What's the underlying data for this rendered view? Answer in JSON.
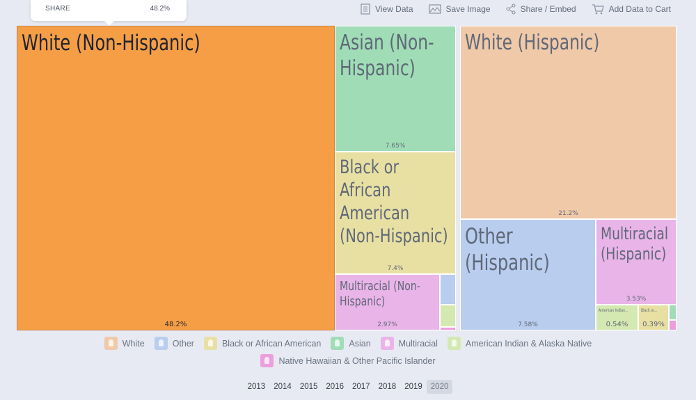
{
  "tooltip": {
    "key": "SHARE",
    "value": "48.2%"
  },
  "toolbar": {
    "items": [
      {
        "label": "View Data",
        "icon": "document-icon"
      },
      {
        "label": "Save Image",
        "icon": "image-icon"
      },
      {
        "label": "Share / Embed",
        "icon": "share-icon"
      },
      {
        "label": "Add Data to Cart",
        "icon": "cart-icon"
      }
    ]
  },
  "chart_data": {
    "type": "treemap",
    "unit": "share (%)",
    "highlighted": "White (Non-Hispanic)",
    "groups": [
      {
        "name": "White",
        "color": "#f0c9a9"
      },
      {
        "name": "Other",
        "color": "#b9cdee"
      },
      {
        "name": "Black or African American",
        "color": "#e8e0a3"
      },
      {
        "name": "Asian",
        "color": "#a0ddb6"
      },
      {
        "name": "Multiracial",
        "color": "#e9b4e8"
      },
      {
        "name": "American Indian & Alaska Native",
        "color": "#d4e9b1"
      },
      {
        "name": "Native Hawaiian & Other Pacific Islander",
        "color": "#ec9fdc"
      }
    ],
    "nodes": [
      {
        "label": "White (Non-Hispanic)",
        "value": 48.2,
        "pct": "48.2%",
        "group": "White"
      },
      {
        "label": "Asian (Non-Hispanic)",
        "value": 7.65,
        "pct": "7.65%",
        "group": "Asian"
      },
      {
        "label": "Black or African American (Non-Hispanic)",
        "value": 7.4,
        "pct": "7.4%",
        "group": "Black or African American"
      },
      {
        "label": "Multiracial (Non-Hispanic)",
        "value": 2.97,
        "pct": "2.97%",
        "group": "Multiracial"
      },
      {
        "label": "",
        "value": 0.5,
        "pct": "",
        "group": "Other"
      },
      {
        "label": "",
        "value": 0.4,
        "pct": "",
        "group": "American Indian & Alaska Native"
      },
      {
        "label": "",
        "value": 0.1,
        "pct": "",
        "group": "Native Hawaiian & Other Pacific Islander"
      },
      {
        "label": "White (Hispanic)",
        "value": 21.2,
        "pct": "21.2%",
        "group": "White"
      },
      {
        "label": "Other (Hispanic)",
        "value": 7.58,
        "pct": "7.58%",
        "group": "Other"
      },
      {
        "label": "Multiracial (Hispanic)",
        "value": 3.53,
        "pct": "3.53%",
        "group": "Multiracial"
      },
      {
        "label": "American Indian...",
        "value": 0.54,
        "pct": "0.54%",
        "group": "American Indian & Alaska Native"
      },
      {
        "label": "Black or...",
        "value": 0.39,
        "pct": "0.39%",
        "group": "Black or African American"
      },
      {
        "label": "",
        "value": 0.15,
        "pct": "",
        "group": "Asian"
      },
      {
        "label": "",
        "value": 0.1,
        "pct": "",
        "group": "Native Hawaiian & Other Pacific Islander"
      }
    ]
  },
  "legend": {
    "rows": [
      [
        {
          "label": "White",
          "color": "#f0c9a9"
        },
        {
          "label": "Other",
          "color": "#b9cdee"
        },
        {
          "label": "Black or African American",
          "color": "#e8e0a3"
        },
        {
          "label": "Asian",
          "color": "#a0ddb6"
        },
        {
          "label": "Multiracial",
          "color": "#e9b4e8"
        },
        {
          "label": "American Indian & Alaska Native",
          "color": "#d4e9b1"
        }
      ],
      [
        {
          "label": "Native Hawaiian & Other Pacific Islander",
          "color": "#ec9fdc"
        }
      ]
    ]
  },
  "years": {
    "items": [
      "2013",
      "2014",
      "2015",
      "2016",
      "2017",
      "2018",
      "2019",
      "2020"
    ],
    "selected": "2020"
  },
  "colors": {
    "highlight": "#f59e45",
    "highlight_border": "#c98446",
    "page_bg": "#e7eaf3"
  }
}
